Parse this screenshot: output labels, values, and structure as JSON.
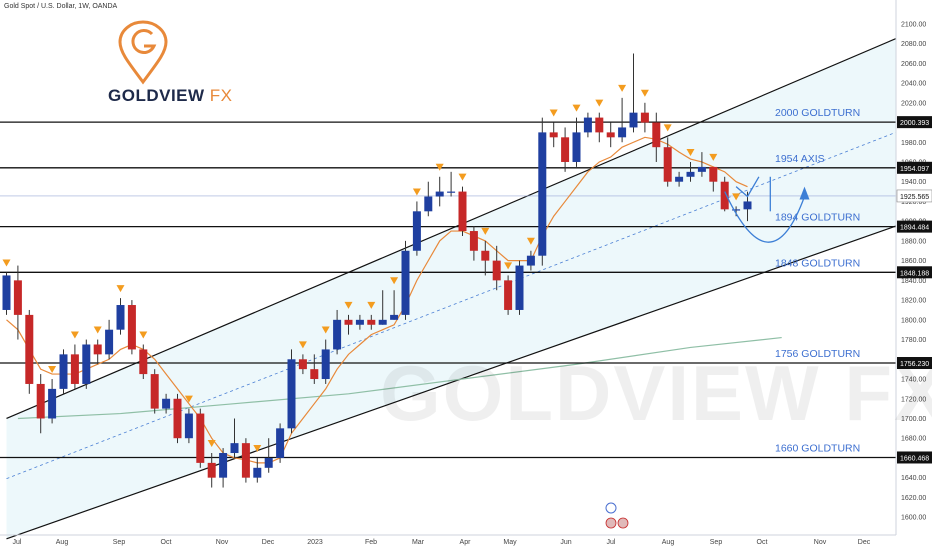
{
  "header": {
    "symbol_line": "Gold Spot / U.S. Dollar, 1W, OANDA"
  },
  "branding": {
    "logo_word": "GOLDVIEW",
    "logo_fx": "FX",
    "watermark": "GOLDVIEW FX"
  },
  "colors": {
    "bull": "#1f3fa0",
    "bear": "#c62828",
    "marker": "#f39c1f",
    "ema": "#e8893a",
    "ma": "#8fbfa6",
    "channel_fill": "#e6f5fa",
    "projection": "#3d7fd6",
    "label": "#3d6fd0"
  },
  "chart_data": {
    "type": "candlestick",
    "title": "Gold Spot / U.S. Dollar, 1W, OANDA",
    "ylim": [
      1590,
      2110
    ],
    "y_ticks": [
      1600,
      1620,
      1640,
      1660,
      1680,
      1700,
      1720,
      1740,
      1760,
      1780,
      1800,
      1820,
      1840,
      1860,
      1880,
      1900,
      1920,
      1940,
      1960,
      1980,
      2000,
      2020,
      2040,
      2060,
      2080,
      2100
    ],
    "x_labels": [
      "Jul",
      "Aug",
      "Sep",
      "Oct",
      "Nov",
      "Dec",
      "2023",
      "Feb",
      "Mar",
      "Apr",
      "May",
      "Jun",
      "Jul",
      "Aug",
      "Sep",
      "Oct",
      "Nov",
      "Dec"
    ],
    "candles": [
      [
        1810,
        1845,
        1805,
        1848
      ],
      [
        1840,
        1805,
        1780,
        1855
      ],
      [
        1805,
        1735,
        1725,
        1810
      ],
      [
        1735,
        1700,
        1685,
        1745
      ],
      [
        1700,
        1730,
        1695,
        1740
      ],
      [
        1730,
        1765,
        1725,
        1770
      ],
      [
        1765,
        1735,
        1730,
        1775
      ],
      [
        1735,
        1775,
        1730,
        1780
      ],
      [
        1775,
        1765,
        1755,
        1780
      ],
      [
        1765,
        1790,
        1760,
        1800
      ],
      [
        1790,
        1815,
        1785,
        1822
      ],
      [
        1815,
        1770,
        1765,
        1820
      ],
      [
        1770,
        1745,
        1740,
        1775
      ],
      [
        1745,
        1710,
        1705,
        1750
      ],
      [
        1710,
        1720,
        1705,
        1725
      ],
      [
        1720,
        1680,
        1675,
        1725
      ],
      [
        1680,
        1705,
        1675,
        1710
      ],
      [
        1705,
        1655,
        1650,
        1710
      ],
      [
        1655,
        1640,
        1630,
        1665
      ],
      [
        1640,
        1665,
        1630,
        1670
      ],
      [
        1665,
        1675,
        1660,
        1700
      ],
      [
        1675,
        1640,
        1635,
        1680
      ],
      [
        1640,
        1650,
        1635,
        1660
      ],
      [
        1650,
        1660,
        1645,
        1680
      ],
      [
        1660,
        1690,
        1655,
        1695
      ],
      [
        1690,
        1760,
        1685,
        1770
      ],
      [
        1760,
        1750,
        1745,
        1765
      ],
      [
        1750,
        1740,
        1735,
        1765
      ],
      [
        1740,
        1770,
        1735,
        1780
      ],
      [
        1770,
        1800,
        1765,
        1810
      ],
      [
        1800,
        1795,
        1785,
        1805
      ],
      [
        1795,
        1800,
        1790,
        1805
      ],
      [
        1800,
        1795,
        1790,
        1805
      ],
      [
        1795,
        1800,
        1795,
        1830
      ],
      [
        1800,
        1805,
        1800,
        1830
      ],
      [
        1805,
        1870,
        1800,
        1880
      ],
      [
        1870,
        1910,
        1865,
        1920
      ],
      [
        1910,
        1925,
        1905,
        1940
      ],
      [
        1925,
        1930,
        1915,
        1945
      ],
      [
        1930,
        1930,
        1925,
        1950
      ],
      [
        1930,
        1890,
        1885,
        1935
      ],
      [
        1890,
        1870,
        1860,
        1895
      ],
      [
        1870,
        1860,
        1845,
        1880
      ],
      [
        1860,
        1840,
        1830,
        1875
      ],
      [
        1840,
        1810,
        1805,
        1845
      ],
      [
        1810,
        1855,
        1805,
        1860
      ],
      [
        1855,
        1865,
        1850,
        1870
      ],
      [
        1865,
        1990,
        1855,
        2005
      ],
      [
        1990,
        1985,
        1975,
        2000
      ],
      [
        1985,
        1960,
        1950,
        1995
      ],
      [
        1960,
        1990,
        1955,
        2005
      ],
      [
        1990,
        2005,
        1985,
        2010
      ],
      [
        2005,
        1990,
        1980,
        2010
      ],
      [
        1990,
        1985,
        1975,
        2000
      ],
      [
        1985,
        1995,
        1980,
        2025
      ],
      [
        1995,
        2010,
        1990,
        2070
      ],
      [
        2010,
        2000,
        1990,
        2020
      ],
      [
        2000,
        1975,
        1960,
        2010
      ],
      [
        1975,
        1940,
        1935,
        1985
      ],
      [
        1940,
        1945,
        1935,
        1950
      ],
      [
        1945,
        1950,
        1940,
        1960
      ],
      [
        1950,
        1955,
        1945,
        1970
      ],
      [
        1955,
        1940,
        1930,
        1955
      ],
      [
        1940,
        1912,
        1910,
        1945
      ],
      [
        1912,
        1912,
        1905,
        1915
      ],
      [
        1912,
        1920,
        1900,
        1930
      ]
    ],
    "ema_line": [
      1800,
      1790,
      1770,
      1750,
      1745,
      1745,
      1745,
      1750,
      1755,
      1760,
      1770,
      1775,
      1770,
      1760,
      1745,
      1730,
      1715,
      1700,
      1680,
      1665,
      1660,
      1658,
      1655,
      1655,
      1660,
      1685,
      1700,
      1715,
      1730,
      1750,
      1765,
      1775,
      1785,
      1790,
      1795,
      1815,
      1840,
      1860,
      1880,
      1890,
      1890,
      1885,
      1880,
      1870,
      1860,
      1860,
      1860,
      1885,
      1905,
      1920,
      1935,
      1950,
      1960,
      1965,
      1975,
      1980,
      1985,
      1983,
      1978,
      1970,
      1963,
      1960,
      1955,
      1950,
      1940,
      1935
    ],
    "ma_line": [
      [
        1,
        1700
      ],
      [
        10,
        1705
      ],
      [
        20,
        1715
      ],
      [
        30,
        1725
      ],
      [
        40,
        1740
      ],
      [
        50,
        1755
      ],
      [
        60,
        1772
      ],
      [
        68,
        1782
      ]
    ],
    "levels": [
      {
        "label": "2000 GOLDTURN",
        "price_tag": "2000.393",
        "value": 2000.393
      },
      {
        "label": "1954 AXIS",
        "price_tag": "1954.097",
        "value": 1954.097
      },
      {
        "label": "1894 GOLDTURN",
        "price_tag": "1894.484",
        "value": 1894.484
      },
      {
        "label": "1848 GOLDTURN",
        "price_tag": "1848.188",
        "value": 1848.188
      },
      {
        "label": "1756 GOLDTURN",
        "price_tag": "1756.230",
        "value": 1756.23
      },
      {
        "label": "1660 GOLDTURN",
        "price_tag": "1660.468",
        "value": 1660.468
      }
    ],
    "current_price": {
      "tag": "1925.565",
      "value": 1925.565
    },
    "markers": [
      0,
      4,
      6,
      8,
      10,
      12,
      16,
      18,
      22,
      26,
      28,
      30,
      32,
      34,
      36,
      38,
      40,
      42,
      44,
      46,
      48,
      50,
      52,
      54,
      56,
      58,
      60,
      62,
      64
    ],
    "channel_upper": [
      [
        0,
        1700
      ],
      [
        78,
        2085
      ]
    ],
    "channel_lower": [
      [
        0,
        1578
      ],
      [
        78,
        1895
      ]
    ],
    "grid": false
  }
}
